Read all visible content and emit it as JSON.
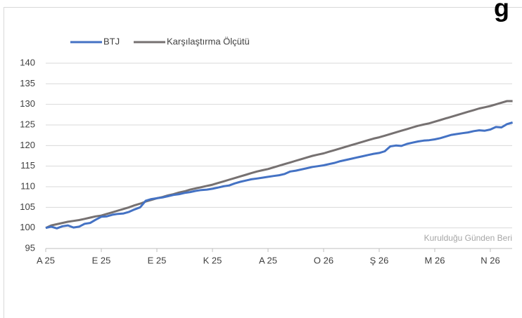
{
  "chart_data": {
    "type": "line",
    "title": "g",
    "annotation": "Kurulduğu Günden Beri",
    "categories": [
      "A 25",
      null,
      null,
      null,
      null,
      null,
      null,
      null,
      null,
      null,
      "E 25",
      null,
      null,
      null,
      null,
      null,
      null,
      null,
      null,
      null,
      "E 25",
      null,
      null,
      null,
      null,
      null,
      null,
      null,
      null,
      null,
      "K 25",
      null,
      null,
      null,
      null,
      null,
      null,
      null,
      null,
      null,
      "A 25",
      null,
      null,
      null,
      null,
      null,
      null,
      null,
      null,
      null,
      "O 26",
      null,
      null,
      null,
      null,
      null,
      null,
      null,
      null,
      null,
      "Ş 26",
      null,
      null,
      null,
      null,
      null,
      null,
      null,
      null,
      null,
      "M 26",
      null,
      null,
      null,
      null,
      null,
      null,
      null,
      null,
      null,
      "N 26",
      null,
      null,
      null,
      null
    ],
    "series": [
      {
        "name": "BTJ",
        "color": "#4472c4",
        "values": [
          100,
          100.3,
          99.9,
          100.4,
          100.6,
          100.1,
          100.3,
          101.0,
          101.2,
          102.0,
          102.7,
          102.8,
          103.2,
          103.4,
          103.5,
          103.9,
          104.5,
          105.0,
          106.6,
          107.0,
          107.2,
          107.4,
          107.7,
          108.0,
          108.2,
          108.5,
          108.7,
          109.0,
          109.2,
          109.3,
          109.5,
          109.8,
          110.1,
          110.3,
          110.8,
          111.2,
          111.5,
          111.8,
          112.0,
          112.2,
          112.4,
          112.6,
          112.8,
          113.1,
          113.7,
          113.9,
          114.2,
          114.5,
          114.8,
          115.0,
          115.2,
          115.5,
          115.8,
          116.2,
          116.5,
          116.8,
          117.1,
          117.4,
          117.7,
          118.0,
          118.2,
          118.6,
          119.8,
          120.0,
          119.9,
          120.4,
          120.7,
          121.0,
          121.2,
          121.3,
          121.5,
          121.8,
          122.2,
          122.6,
          122.8,
          123.0,
          123.2,
          123.5,
          123.7,
          123.6,
          123.9,
          124.5,
          124.4,
          125.2,
          125.6
        ]
      },
      {
        "name": "Karşılaştırma Ölçütü",
        "color": "#767171",
        "values": [
          100,
          100.6,
          100.9,
          101.2,
          101.5,
          101.7,
          101.9,
          102.2,
          102.5,
          102.8,
          103.0,
          103.4,
          103.8,
          104.2,
          104.6,
          105.0,
          105.5,
          105.9,
          106.4,
          106.8,
          107.2,
          107.5,
          107.9,
          108.2,
          108.6,
          108.9,
          109.3,
          109.6,
          109.9,
          110.2,
          110.5,
          110.9,
          111.3,
          111.7,
          112.1,
          112.5,
          112.9,
          113.3,
          113.7,
          114.0,
          114.3,
          114.7,
          115.1,
          115.5,
          115.9,
          116.3,
          116.7,
          117.1,
          117.5,
          117.8,
          118.1,
          118.5,
          118.9,
          119.3,
          119.7,
          120.1,
          120.5,
          120.9,
          121.3,
          121.7,
          122.0,
          122.4,
          122.8,
          123.2,
          123.6,
          124.0,
          124.4,
          124.8,
          125.1,
          125.4,
          125.8,
          126.2,
          126.6,
          127.0,
          127.4,
          127.8,
          128.2,
          128.6,
          129.0,
          129.3,
          129.6,
          130.0,
          130.4,
          130.8,
          130.8
        ]
      }
    ],
    "ylim": [
      95,
      140
    ],
    "yticks": [
      95,
      100,
      105,
      110,
      115,
      120,
      125,
      130,
      135,
      140
    ],
    "grid": true,
    "legend": "top"
  }
}
